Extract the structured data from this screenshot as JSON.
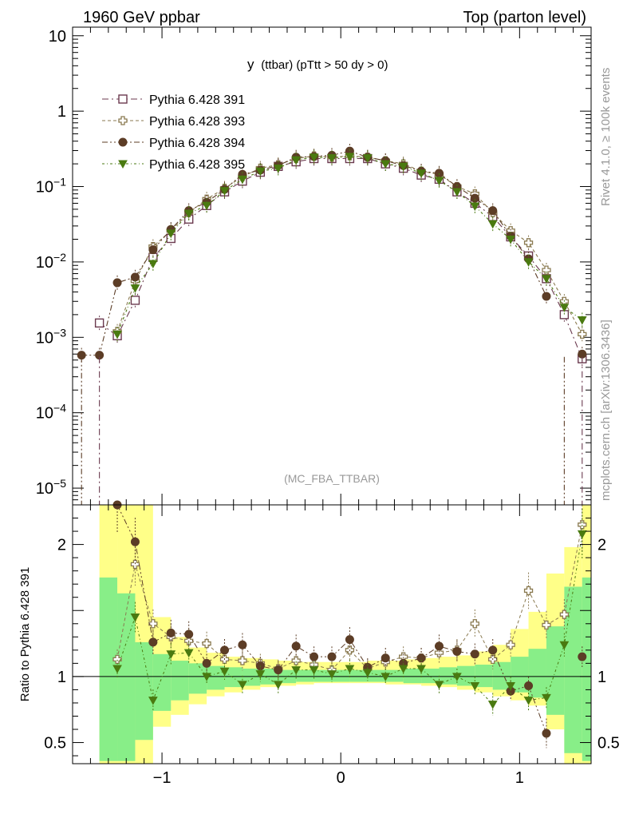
{
  "header": {
    "left": "1960 GeV ppbar",
    "right": "Top (parton level)"
  },
  "side_labels": {
    "rivet": "Rivet 4.1.0, ≥ 100k events",
    "mcplots": "mcplots.cern.ch [arXiv:1306.3436]"
  },
  "chart_data": [
    {
      "type": "line",
      "panel": "main",
      "title_main": "y",
      "title_sub": "(ttbar) (pTtt > 50 dy > 0)",
      "watermark": "(MC_FBA_TTBAR)",
      "yscale": "log",
      "xlim": [
        -1.5,
        1.4
      ],
      "ylim": [
        6e-06,
        13
      ],
      "y_ticks": [
        {
          "v": 10,
          "label": "10"
        },
        {
          "v": 1,
          "label": "1"
        },
        {
          "v": 0.1,
          "base": "10",
          "exp": "−1"
        },
        {
          "v": 0.01,
          "base": "10",
          "exp": "−2"
        },
        {
          "v": 0.001,
          "base": "10",
          "exp": "−3"
        },
        {
          "v": 0.0001,
          "base": "10",
          "exp": "−4"
        },
        {
          "v": 1e-05,
          "base": "10",
          "exp": "−5"
        }
      ],
      "x": [
        -1.45,
        -1.35,
        -1.25,
        -1.15,
        -1.05,
        -0.95,
        -0.85,
        -0.75,
        -0.65,
        -0.55,
        -0.45,
        -0.35,
        -0.25,
        -0.15,
        -0.05,
        0.05,
        0.15,
        0.25,
        0.35,
        0.45,
        0.55,
        0.65,
        0.75,
        0.85,
        0.95,
        1.05,
        1.15,
        1.25,
        1.35
      ],
      "series": [
        {
          "name": "Pythia 6.428 391",
          "color": "#6b3a4f",
          "marker": "square-open",
          "values": [
            null,
            0.00155,
            0.00105,
            0.0031,
            0.0115,
            0.0205,
            0.037,
            0.056,
            0.085,
            0.118,
            0.155,
            0.185,
            0.213,
            0.235,
            0.235,
            0.235,
            0.235,
            0.2,
            0.175,
            0.142,
            0.125,
            0.085,
            0.06,
            0.04,
            0.0215,
            0.012,
            0.006,
            0.002,
            0.00052
          ]
        },
        {
          "name": "Pythia 6.428 393",
          "color": "#8a7a50",
          "marker": "cross-open",
          "values": [
            null,
            null,
            0.0012,
            0.0056,
            0.016,
            0.026,
            0.045,
            0.068,
            0.095,
            0.135,
            0.175,
            0.195,
            0.235,
            0.255,
            0.245,
            0.255,
            0.245,
            0.22,
            0.2,
            0.16,
            0.145,
            0.1,
            0.08,
            0.045,
            0.026,
            0.018,
            0.0078,
            0.003,
            0.0011
          ]
        },
        {
          "name": "Pythia 6.428 394",
          "color": "#5c3d26",
          "marker": "circle",
          "values": [
            0.00058,
            0.00058,
            0.0053,
            0.0063,
            0.0145,
            0.027,
            0.048,
            0.062,
            0.092,
            0.145,
            0.165,
            0.19,
            0.245,
            0.25,
            0.26,
            0.295,
            0.245,
            0.22,
            0.19,
            0.16,
            0.15,
            0.1,
            0.07,
            0.048,
            0.022,
            0.011,
            0.0035,
            null,
            0.0006
          ]
        },
        {
          "name": "Pythia 6.428 395",
          "color": "#4a7a10",
          "marker": "triangle-down",
          "values": [
            null,
            null,
            0.0011,
            0.0045,
            0.0095,
            0.024,
            0.044,
            0.056,
            0.088,
            0.125,
            0.16,
            0.175,
            0.225,
            0.245,
            0.24,
            0.25,
            0.24,
            0.2,
            0.185,
            0.15,
            0.12,
            0.085,
            0.055,
            0.032,
            0.02,
            0.01,
            0.006,
            0.0025,
            0.0017
          ]
        }
      ]
    },
    {
      "type": "line",
      "panel": "ratio",
      "ylabel": "Ratio to Pythia 6.428 391",
      "ylim": [
        0.34,
        2.3
      ],
      "y_ticks": [
        {
          "v": 0.5,
          "label": "0.5"
        },
        {
          "v": 1,
          "label": "1"
        },
        {
          "v": 2,
          "label": "2"
        }
      ],
      "x_ticks": [
        {
          "v": -1,
          "label": "−1"
        },
        {
          "v": 0,
          "label": "0"
        },
        {
          "v": 1,
          "label": "1"
        }
      ],
      "x": [
        -1.45,
        -1.35,
        -1.25,
        -1.15,
        -1.05,
        -0.95,
        -0.85,
        -0.75,
        -0.65,
        -0.55,
        -0.45,
        -0.35,
        -0.25,
        -0.15,
        -0.05,
        0.05,
        0.15,
        0.25,
        0.35,
        0.45,
        0.55,
        0.65,
        0.75,
        0.85,
        0.95,
        1.05,
        1.15,
        1.25,
        1.35
      ],
      "band_yellow": {
        "bins": [
          [
            -1.35,
            -1.25
          ],
          [
            -1.25,
            -1.15
          ],
          [
            -1.15,
            -1.05
          ],
          [
            -1.05,
            -0.95
          ],
          [
            -0.95,
            -0.85
          ],
          [
            -0.85,
            -0.75
          ],
          [
            -0.75,
            -0.65
          ],
          [
            -0.65,
            -0.55
          ],
          [
            -0.55,
            -0.45
          ],
          [
            -0.45,
            -0.35
          ],
          [
            -0.35,
            -0.25
          ],
          [
            -0.25,
            -0.15
          ],
          [
            -0.15,
            -0.05
          ],
          [
            -0.05,
            0.05
          ],
          [
            0.05,
            0.15
          ],
          [
            0.15,
            0.25
          ],
          [
            0.25,
            0.35
          ],
          [
            0.35,
            0.45
          ],
          [
            0.45,
            0.55
          ],
          [
            0.55,
            0.65
          ],
          [
            0.65,
            0.75
          ],
          [
            0.75,
            0.85
          ],
          [
            0.85,
            0.95
          ],
          [
            0.95,
            1.05
          ],
          [
            1.05,
            1.15
          ],
          [
            1.15,
            1.25
          ],
          [
            1.25,
            1.35
          ],
          [
            1.35,
            1.45
          ]
        ],
        "lo": [
          0.34,
          0.34,
          0.34,
          0.62,
          0.71,
          0.79,
          0.85,
          0.88,
          0.9,
          0.92,
          0.93,
          0.94,
          0.95,
          0.95,
          0.95,
          0.95,
          0.94,
          0.94,
          0.93,
          0.92,
          0.9,
          0.88,
          0.85,
          0.82,
          0.78,
          0.6,
          0.34,
          0.34
        ],
        "hi": [
          2.3,
          2.3,
          2.3,
          1.45,
          1.3,
          1.22,
          1.18,
          1.15,
          1.14,
          1.13,
          1.12,
          1.11,
          1.11,
          1.11,
          1.11,
          1.12,
          1.12,
          1.13,
          1.14,
          1.15,
          1.16,
          1.19,
          1.24,
          1.36,
          1.49,
          1.78,
          1.98,
          2.3
        ]
      },
      "band_green": {
        "bins": [
          [
            -1.35,
            -1.25
          ],
          [
            -1.25,
            -1.15
          ],
          [
            -1.15,
            -1.05
          ],
          [
            -1.05,
            -0.95
          ],
          [
            -0.95,
            -0.85
          ],
          [
            -0.85,
            -0.75
          ],
          [
            -0.75,
            -0.65
          ],
          [
            -0.65,
            -0.55
          ],
          [
            -0.55,
            -0.45
          ],
          [
            -0.45,
            -0.35
          ],
          [
            -0.35,
            -0.25
          ],
          [
            -0.25,
            -0.15
          ],
          [
            -0.15,
            -0.05
          ],
          [
            -0.05,
            0.05
          ],
          [
            0.05,
            0.15
          ],
          [
            0.15,
            0.25
          ],
          [
            0.25,
            0.35
          ],
          [
            0.35,
            0.45
          ],
          [
            0.45,
            0.55
          ],
          [
            0.55,
            0.65
          ],
          [
            0.65,
            0.75
          ],
          [
            0.75,
            0.85
          ],
          [
            0.85,
            0.95
          ],
          [
            0.95,
            1.05
          ],
          [
            1.05,
            1.15
          ],
          [
            1.15,
            1.25
          ],
          [
            1.25,
            1.35
          ],
          [
            1.35,
            1.45
          ]
        ],
        "lo": [
          0.36,
          0.36,
          0.52,
          0.74,
          0.82,
          0.87,
          0.9,
          0.92,
          0.93,
          0.94,
          0.95,
          0.96,
          0.96,
          0.96,
          0.96,
          0.96,
          0.96,
          0.95,
          0.95,
          0.94,
          0.93,
          0.92,
          0.9,
          0.88,
          0.84,
          0.71,
          0.42,
          0.36
        ],
        "hi": [
          1.75,
          1.63,
          1.26,
          1.17,
          1.12,
          1.1,
          1.08,
          1.07,
          1.06,
          1.06,
          1.05,
          1.05,
          1.05,
          1.05,
          1.05,
          1.05,
          1.05,
          1.06,
          1.06,
          1.07,
          1.08,
          1.09,
          1.11,
          1.15,
          1.21,
          1.38,
          1.68,
          1.75
        ]
      },
      "series": [
        {
          "name": "Pythia 6.428 391",
          "color": "#6b3a4f",
          "marker": "square-open",
          "values": [
            null,
            1,
            1,
            1,
            1,
            1,
            1,
            1,
            1,
            1,
            1,
            1,
            1,
            1,
            1,
            1,
            1,
            1,
            1,
            1,
            1,
            1,
            1,
            1,
            1,
            1,
            1,
            1,
            1
          ]
        },
        {
          "name": "Pythia 6.428 393",
          "color": "#8a7a50",
          "marker": "cross-open",
          "values": [
            null,
            null,
            1.13,
            1.85,
            1.4,
            1.3,
            1.27,
            1.25,
            1.13,
            1.12,
            1.1,
            1.06,
            1.12,
            1.09,
            1.05,
            1.2,
            1.06,
            1.11,
            1.15,
            1.14,
            1.18,
            1.2,
            1.4,
            1.13,
            1.24,
            1.65,
            1.39,
            1.47,
            2.15
          ]
        },
        {
          "name": "Pythia 6.428 394",
          "color": "#5c3d26",
          "marker": "circle",
          "values": [
            null,
            null,
            2.3,
            2.02,
            1.26,
            1.33,
            1.32,
            1.1,
            1.2,
            1.24,
            1.08,
            1.05,
            1.23,
            1.15,
            1.15,
            1.28,
            1.07,
            1.14,
            1.1,
            1.14,
            1.23,
            1.19,
            1.17,
            1.2,
            0.89,
            0.93,
            0.57,
            null,
            1.15
          ]
        },
        {
          "name": "Pythia 6.428 395",
          "color": "#4a7a10",
          "marker": "triangle-down",
          "values": [
            null,
            null,
            1.06,
            1.45,
            0.82,
            1.17,
            1.18,
            1.0,
            1.04,
            0.94,
            1.02,
            0.94,
            1.05,
            1.05,
            1.02,
            1.06,
            1.03,
            1.0,
            1.06,
            1.06,
            0.94,
            1.0,
            0.93,
            0.79,
            0.93,
            0.82,
            0.84,
            1.24,
            2.08
          ]
        }
      ]
    }
  ]
}
